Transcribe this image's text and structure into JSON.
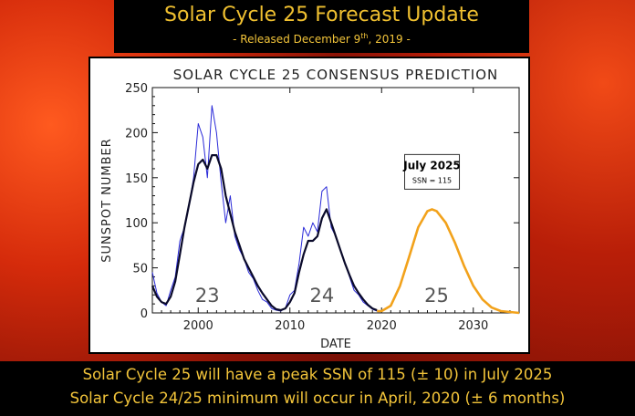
{
  "header": {
    "title": "Solar Cycle 25 Forecast Update",
    "subtitle_prefix": "- Released December 9",
    "subtitle_sup": "th",
    "subtitle_suffix": ", 2019 -"
  },
  "footer": {
    "line1": "Solar Cycle 25 will have a peak SSN of 115 (± 10) in July 2025",
    "line2": "Solar Cycle 24/25 minimum will occur in April, 2020 (± 6 months)"
  },
  "colors": {
    "title_text": "#f0c030",
    "observed_monthly": "#2a2ad8",
    "smoothed": "#0a0a2a",
    "prediction": "#f2a21b"
  },
  "chart_data": {
    "type": "line",
    "title": "SOLAR CYCLE 25 CONSENSUS PREDICTION",
    "xlabel": "DATE",
    "ylabel": "SUNSPOT NUMBER",
    "xlim": [
      1995,
      2035
    ],
    "ylim": [
      0,
      250
    ],
    "xticks": [
      2000,
      2010,
      2020,
      2030
    ],
    "yticks": [
      0,
      50,
      100,
      150,
      200,
      250
    ],
    "grid": false,
    "series": [
      {
        "x": [
          1995,
          1995.5,
          1996,
          1996.5,
          1997,
          1997.5,
          1998,
          1998.5,
          1999,
          1999.5,
          2000,
          2000.5,
          2001,
          2001.5,
          2002,
          2002.5,
          2003,
          2003.5,
          2004,
          2004.5,
          2005,
          2005.5,
          2006,
          2006.5,
          2007,
          2007.5,
          2008,
          2008.5,
          2009,
          2009.5,
          2010,
          2010.5,
          2011,
          2011.5,
          2012,
          2012.5,
          2013,
          2013.5,
          2014,
          2014.5,
          2015,
          2015.5,
          2016,
          2016.5,
          2017,
          2017.5,
          2018,
          2018.5,
          2019,
          2019.5
        ],
        "y": [
          45,
          22,
          12,
          8,
          25,
          40,
          80,
          95,
          120,
          150,
          210,
          195,
          150,
          230,
          200,
          145,
          100,
          130,
          85,
          70,
          60,
          45,
          38,
          25,
          15,
          12,
          5,
          3,
          2,
          5,
          20,
          25,
          55,
          95,
          85,
          100,
          90,
          135,
          140,
          95,
          85,
          70,
          55,
          40,
          25,
          20,
          12,
          8,
          4,
          2
        ]
      },
      {
        "x": [
          1995,
          1995.5,
          1996,
          1996.5,
          1997,
          1997.5,
          1998,
          1998.5,
          1999,
          1999.5,
          2000,
          2000.5,
          2001,
          2001.5,
          2002,
          2002.5,
          2003,
          2003.5,
          2004,
          2004.5,
          2005,
          2005.5,
          2006,
          2006.5,
          2007,
          2007.5,
          2008,
          2008.5,
          2009,
          2009.5,
          2010,
          2010.5,
          2011,
          2011.5,
          2012,
          2012.5,
          2013,
          2013.5,
          2014,
          2014.5,
          2015,
          2015.5,
          2016,
          2016.5,
          2017,
          2017.5,
          2018,
          2018.5,
          2019,
          2019.5
        ],
        "y": [
          30,
          18,
          12,
          10,
          18,
          35,
          65,
          95,
          120,
          145,
          165,
          170,
          160,
          175,
          175,
          160,
          130,
          110,
          90,
          75,
          60,
          50,
          40,
          30,
          22,
          15,
          8,
          4,
          3,
          5,
          12,
          22,
          45,
          65,
          80,
          80,
          85,
          105,
          115,
          100,
          85,
          70,
          55,
          42,
          30,
          22,
          15,
          9,
          5,
          3
        ]
      },
      {
        "x": [
          2019.5,
          2020,
          2021,
          2022,
          2023,
          2024,
          2025,
          2025.5,
          2026,
          2027,
          2028,
          2029,
          2030,
          2031,
          2032,
          2033,
          2034,
          2035
        ],
        "y": [
          2,
          2,
          8,
          30,
          62,
          95,
          113,
          115,
          113,
          100,
          78,
          52,
          30,
          15,
          6,
          2,
          1,
          0
        ]
      }
    ],
    "annotations": [
      {
        "text": "23",
        "x": 2001,
        "y": 12
      },
      {
        "text": "24",
        "x": 2013.5,
        "y": 12
      },
      {
        "text": "25",
        "x": 2026,
        "y": 12
      }
    ],
    "callout": {
      "title": "July 2025",
      "subtitle": "SSN = 115",
      "x": 2025.5,
      "y": 115
    }
  }
}
